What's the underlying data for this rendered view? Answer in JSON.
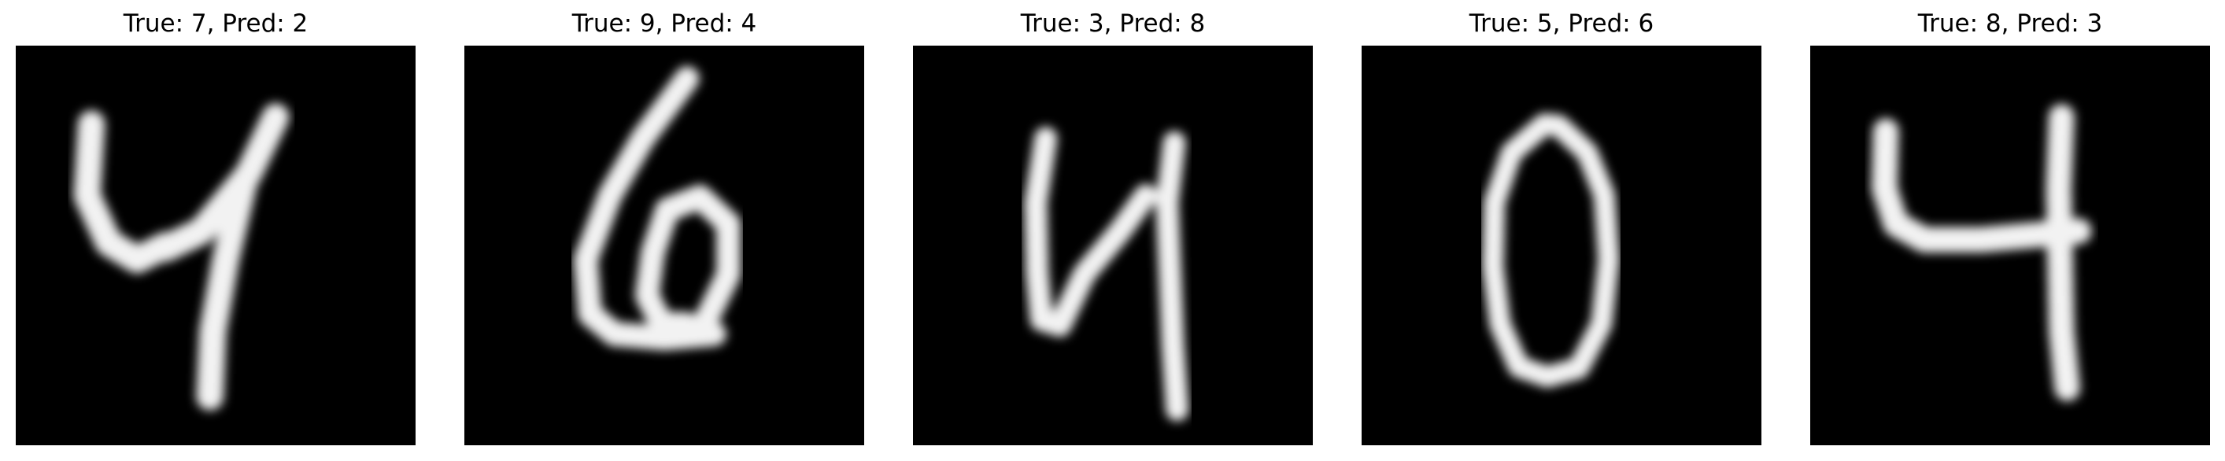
{
  "panels": [
    {
      "title": "True: 7, Pred: 2",
      "digit": "4"
    },
    {
      "title": "True: 9, Pred: 4",
      "digit": "6"
    },
    {
      "title": "True: 3, Pred: 8",
      "digit": "4"
    },
    {
      "title": "True: 5, Pred: 6",
      "digit": "0"
    },
    {
      "title": "True: 8, Pred: 3",
      "digit": "4"
    }
  ]
}
